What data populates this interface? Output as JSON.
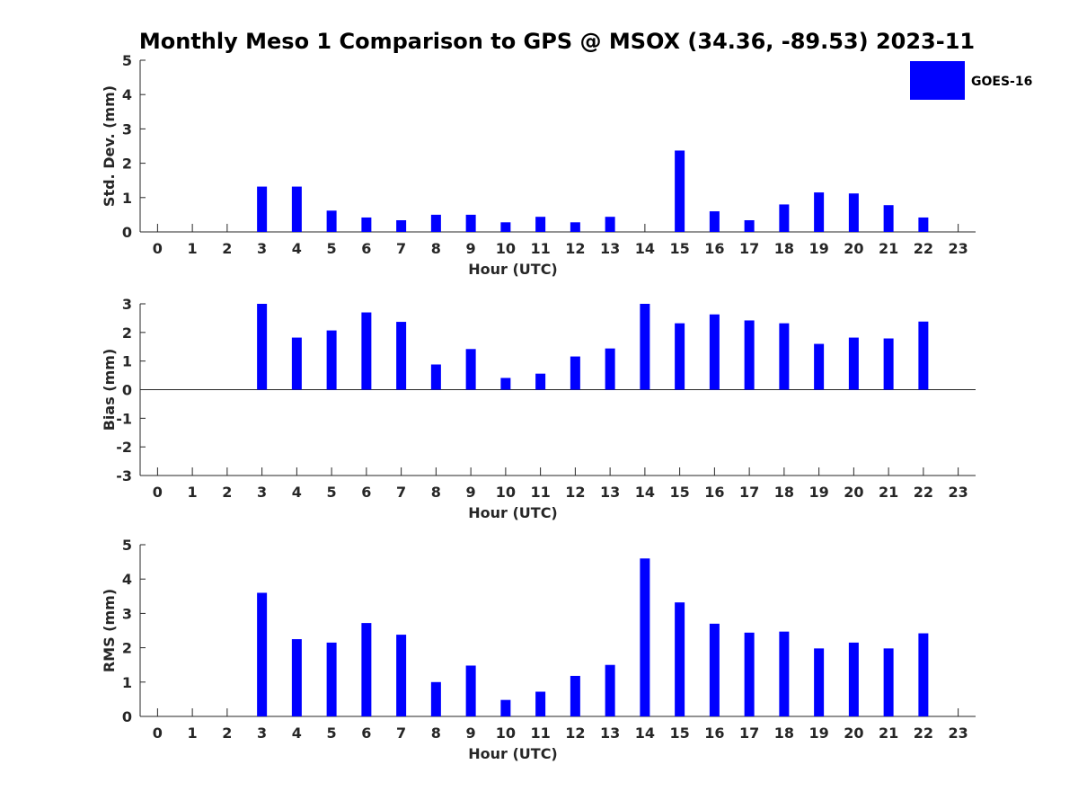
{
  "title": "Monthly Meso 1 Comparison to GPS @ MSOX (34.36, -89.53) 2023-11",
  "legend": {
    "label": "GOES-16",
    "color": "#0000ff"
  },
  "chart_data": [
    {
      "type": "bar",
      "xlabel": "Hour (UTC)",
      "ylabel": "Std. Dev. (mm)",
      "ylim": [
        0,
        5
      ],
      "yticks": [
        0,
        1,
        2,
        3,
        4,
        5
      ],
      "yticklabels": [
        "0",
        "1",
        "2",
        "3",
        "4",
        "5"
      ],
      "xlim": [
        -0.5,
        23.5
      ],
      "categories": [
        "0",
        "1",
        "2",
        "3",
        "4",
        "5",
        "6",
        "7",
        "8",
        "9",
        "10",
        "11",
        "12",
        "13",
        "14",
        "15",
        "16",
        "17",
        "18",
        "19",
        "20",
        "21",
        "22",
        "23"
      ],
      "series": [
        {
          "name": "GOES-16",
          "values": [
            null,
            null,
            null,
            1.32,
            1.32,
            0.62,
            0.42,
            0.34,
            0.5,
            0.5,
            0.28,
            0.44,
            0.28,
            0.44,
            null,
            2.37,
            0.6,
            0.34,
            0.8,
            1.15,
            1.12,
            0.78,
            0.42,
            null
          ]
        }
      ],
      "grid": false
    },
    {
      "type": "bar",
      "xlabel": "Hour (UTC)",
      "ylabel": "Bias (mm)",
      "ylim": [
        -3,
        3
      ],
      "yticks": [
        -3,
        -2,
        -1,
        0,
        1,
        2,
        3
      ],
      "yticklabels": [
        "-3",
        "-2",
        "-1",
        "0",
        "1",
        "2",
        "3"
      ],
      "xlim": [
        -0.5,
        23.5
      ],
      "categories": [
        "0",
        "1",
        "2",
        "3",
        "4",
        "5",
        "6",
        "7",
        "8",
        "9",
        "10",
        "11",
        "12",
        "13",
        "14",
        "15",
        "16",
        "17",
        "18",
        "19",
        "20",
        "21",
        "22",
        "23"
      ],
      "series": [
        {
          "name": "GOES-16",
          "values": [
            null,
            null,
            null,
            3.0,
            1.82,
            2.07,
            2.7,
            2.37,
            0.88,
            1.42,
            0.41,
            0.56,
            1.16,
            1.44,
            3.0,
            2.32,
            2.63,
            2.42,
            2.32,
            1.6,
            1.82,
            1.79,
            2.38,
            null
          ]
        }
      ],
      "grid": false
    },
    {
      "type": "bar",
      "xlabel": "Hour (UTC)",
      "ylabel": "RMS (mm)",
      "ylim": [
        0,
        5
      ],
      "yticks": [
        0,
        1,
        2,
        3,
        4,
        5
      ],
      "yticklabels": [
        "0",
        "1",
        "2",
        "3",
        "4",
        "5"
      ],
      "xlim": [
        -0.5,
        23.5
      ],
      "categories": [
        "0",
        "1",
        "2",
        "3",
        "4",
        "5",
        "6",
        "7",
        "8",
        "9",
        "10",
        "11",
        "12",
        "13",
        "14",
        "15",
        "16",
        "17",
        "18",
        "19",
        "20",
        "21",
        "22",
        "23"
      ],
      "series": [
        {
          "name": "GOES-16",
          "values": [
            null,
            null,
            null,
            3.6,
            2.25,
            2.15,
            2.72,
            2.38,
            1.0,
            1.48,
            0.48,
            0.72,
            1.18,
            1.5,
            4.6,
            3.32,
            2.7,
            2.44,
            2.47,
            1.98,
            2.15,
            1.98,
            2.42,
            null
          ]
        }
      ],
      "grid": false
    }
  ]
}
